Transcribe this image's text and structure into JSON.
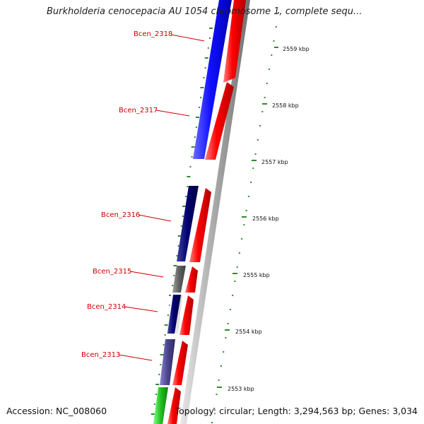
{
  "title": "Burkholderia cenocepacia AU 1054 chromosome 1, complete sequ...",
  "accession": "Accession: NC_008060",
  "topology": "Topology: circular; Length: 3,294,563 bp; Genes: 3,034",
  "colors": {
    "gene_label": "#cc0000",
    "ticks": "#2e8b2e",
    "forward_cds": "#ff0000",
    "backbone": "#999999"
  },
  "gene_labels": [
    "Bcen_2318",
    "Bcen_2317",
    "Bcen_2316",
    "Bcen_2315",
    "Bcen_2314",
    "Bcen_2313"
  ],
  "scale_labels": [
    "2559 kbp",
    "2558 kbp",
    "2557 kbp",
    "2556 kbp",
    "2555 kbp",
    "2554 kbp",
    "2553 kbp"
  ]
}
